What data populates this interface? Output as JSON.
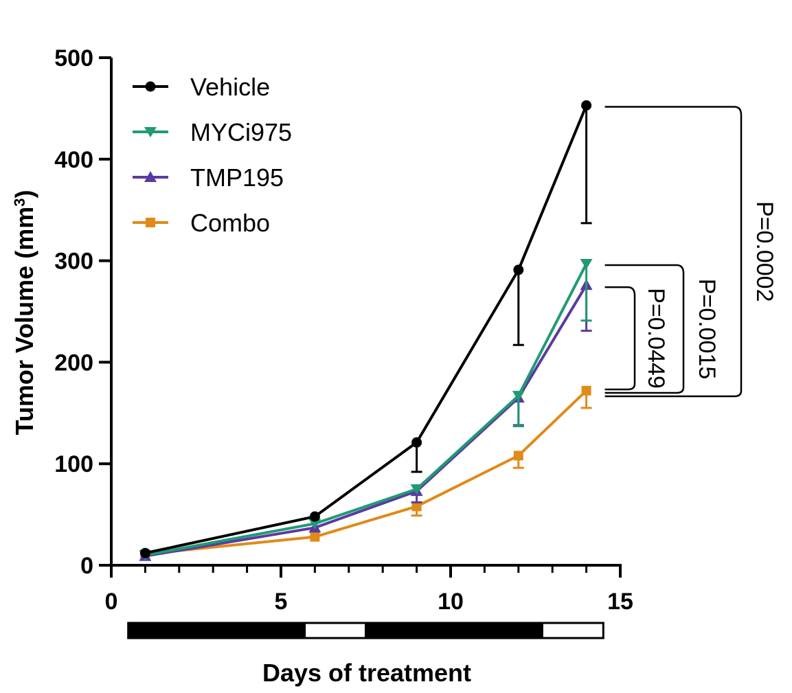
{
  "chart_data": {
    "type": "line",
    "title": "",
    "xlabel": "Days of treatment",
    "ylabel_main": "Tumor Volume (mm",
    "ylabel_sup": "3",
    "ylabel_close": ")",
    "xlim": [
      0,
      15
    ],
    "ylim": [
      0,
      500
    ],
    "xticks": [
      0,
      5,
      10,
      15
    ],
    "xticks_minor": [
      1,
      2,
      3,
      4,
      6,
      7,
      8,
      9,
      11,
      12,
      13,
      14
    ],
    "yticks": [
      0,
      100,
      200,
      300,
      400,
      500
    ],
    "x": [
      1,
      6,
      9,
      12,
      14
    ],
    "series": [
      {
        "name": "Vehicle",
        "color": "#000000",
        "marker": "circle",
        "values": [
          12,
          48,
          121,
          291,
          453
        ],
        "error_bars": [
          {
            "x": 9,
            "low": 92
          },
          {
            "x": 12,
            "low": 217
          },
          {
            "x": 14,
            "low": 337
          }
        ]
      },
      {
        "name": "MYCi975",
        "color": "#219a74",
        "marker": "triangle-down",
        "values": [
          10,
          41,
          75,
          167,
          297
        ],
        "error_bars": [
          {
            "x": 12,
            "low": 137
          },
          {
            "x": 14,
            "low": 241
          }
        ]
      },
      {
        "name": "TMP195",
        "color": "#5a3aa2",
        "marker": "triangle-up",
        "values": [
          9,
          37,
          73,
          165,
          276
        ],
        "error_bars": [
          {
            "x": 9,
            "low": 62
          },
          {
            "x": 12,
            "low": 138
          },
          {
            "x": 14,
            "low": 231
          }
        ]
      },
      {
        "name": "Combo",
        "color": "#e08a19",
        "marker": "square",
        "values": [
          11,
          28,
          58,
          108,
          172
        ],
        "error_bars": [
          {
            "x": 9,
            "low": 49
          },
          {
            "x": 12,
            "low": 96
          },
          {
            "x": 14,
            "low": 155
          }
        ]
      }
    ],
    "legend_position": "top-left",
    "treatment_schedule": [
      {
        "start": 0.5,
        "end": 5.7,
        "state": "on"
      },
      {
        "start": 5.7,
        "end": 7.5,
        "state": "off"
      },
      {
        "start": 7.5,
        "end": 12.7,
        "state": "on"
      },
      {
        "start": 12.7,
        "end": 14.5,
        "state": "off"
      }
    ],
    "comparisons": [
      {
        "from": "Vehicle",
        "to": "Combo",
        "p_label": "P=0.0002"
      },
      {
        "from": "MYCi975",
        "to": "Combo",
        "p_label": "P=0.0015"
      },
      {
        "from": "TMP195",
        "to": "Combo",
        "p_label": "P=0.0449"
      }
    ]
  }
}
